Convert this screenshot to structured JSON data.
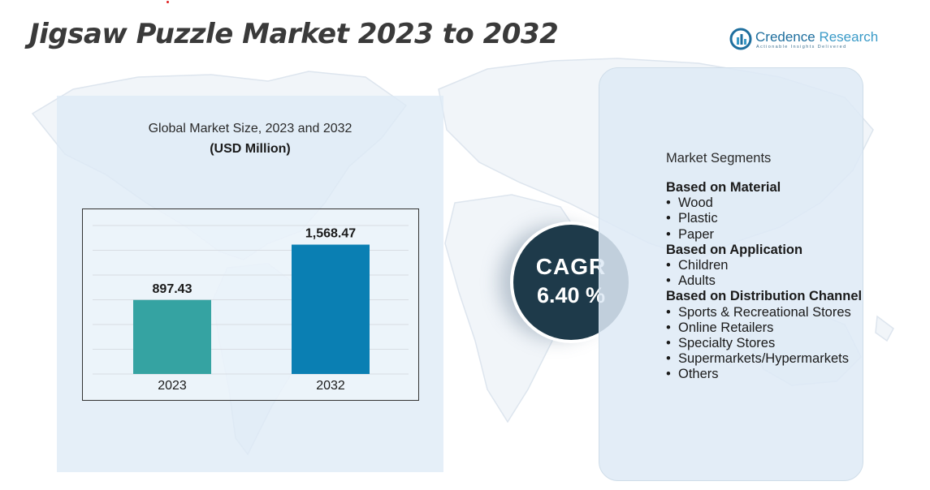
{
  "title": "Jigsaw Puzzle Market 2023 to 2032",
  "logo": {
    "name": "Credence",
    "name_accent": "Research",
    "tagline": "Actionable Insights Delivered"
  },
  "chart_panel": {
    "subtitle": "Global Market Size, 2023 and 2032",
    "unit": "(USD Million)"
  },
  "chart_data": {
    "type": "bar",
    "title": "Global Market Size, 2023 and 2032",
    "ylabel": "(USD Million)",
    "categories": [
      "2023",
      "2032"
    ],
    "values": [
      897.43,
      1568.47
    ],
    "value_labels": [
      "897.43",
      "1,568.47"
    ],
    "ylim": [
      0,
      1800
    ],
    "grid": true,
    "legend": "none",
    "colors": [
      "#35a3a2",
      "#0a7fb3"
    ]
  },
  "cagr": {
    "label": "CAGR",
    "value": "6.40 %"
  },
  "segments": {
    "title": "Market Segments",
    "groups": [
      {
        "heading": "Based on Material",
        "items": [
          "Wood",
          "Plastic",
          "Paper"
        ]
      },
      {
        "heading": "Based on Application",
        "items": [
          "Children",
          "Adults"
        ]
      },
      {
        "heading": "Based on Distribution Channel",
        "items": [
          "Sports & Recreational Stores",
          "Online Retailers",
          "Specialty Stores",
          "Supermarkets/Hypermarkets",
          "Others"
        ]
      }
    ]
  },
  "colors": {
    "title": "#3a3a3a",
    "cagr_bg": "#1e3a4a",
    "panel_bg": "#deeaf6",
    "brand": "#1f6f9e"
  }
}
